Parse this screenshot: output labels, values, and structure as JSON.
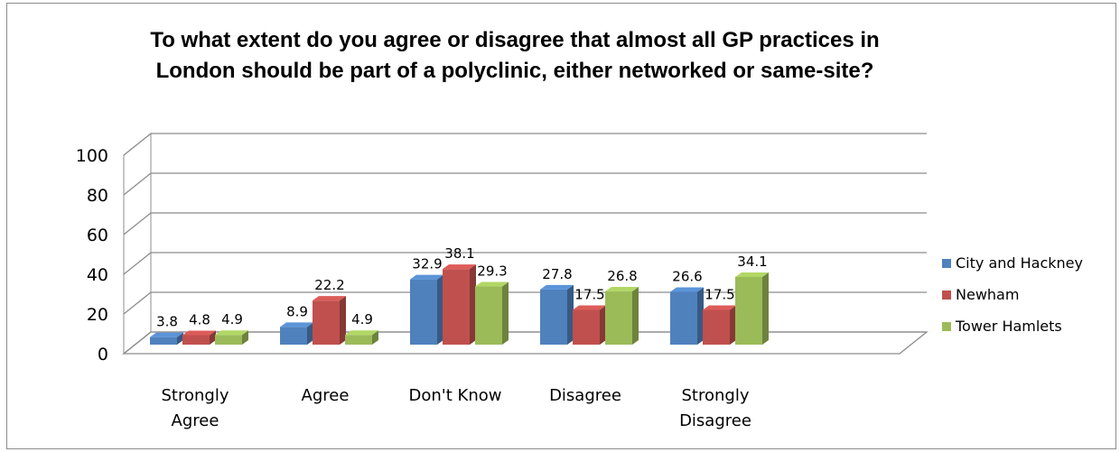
{
  "chart_data": {
    "type": "bar",
    "title": "To what extent do you agree or disagree that almost all GP practices in London should be part of a polyclinic, either networked or same-site?",
    "categories": [
      [
        "Strongly",
        "Agree"
      ],
      [
        "Agree"
      ],
      [
        "Don't Know"
      ],
      [
        "Disagree"
      ],
      [
        "Strongly",
        "Disagree"
      ]
    ],
    "series": [
      {
        "name": "City and Hackney",
        "values": [
          3.8,
          8.9,
          32.9,
          27.8,
          26.6
        ],
        "color": "#4f81bd"
      },
      {
        "name": "Newham",
        "values": [
          4.8,
          22.2,
          38.1,
          17.5,
          17.5
        ],
        "color": "#c0504d"
      },
      {
        "name": "Tower Hamlets",
        "values": [
          4.9,
          4.9,
          29.3,
          26.8,
          34.1
        ],
        "color": "#9bbb59"
      }
    ],
    "ylim": [
      0,
      100
    ],
    "yticks": [
      "0",
      "20",
      "40",
      "60",
      "80",
      "100"
    ],
    "grid": true,
    "legend_position": "right",
    "bar_style": "3d-clustered"
  }
}
